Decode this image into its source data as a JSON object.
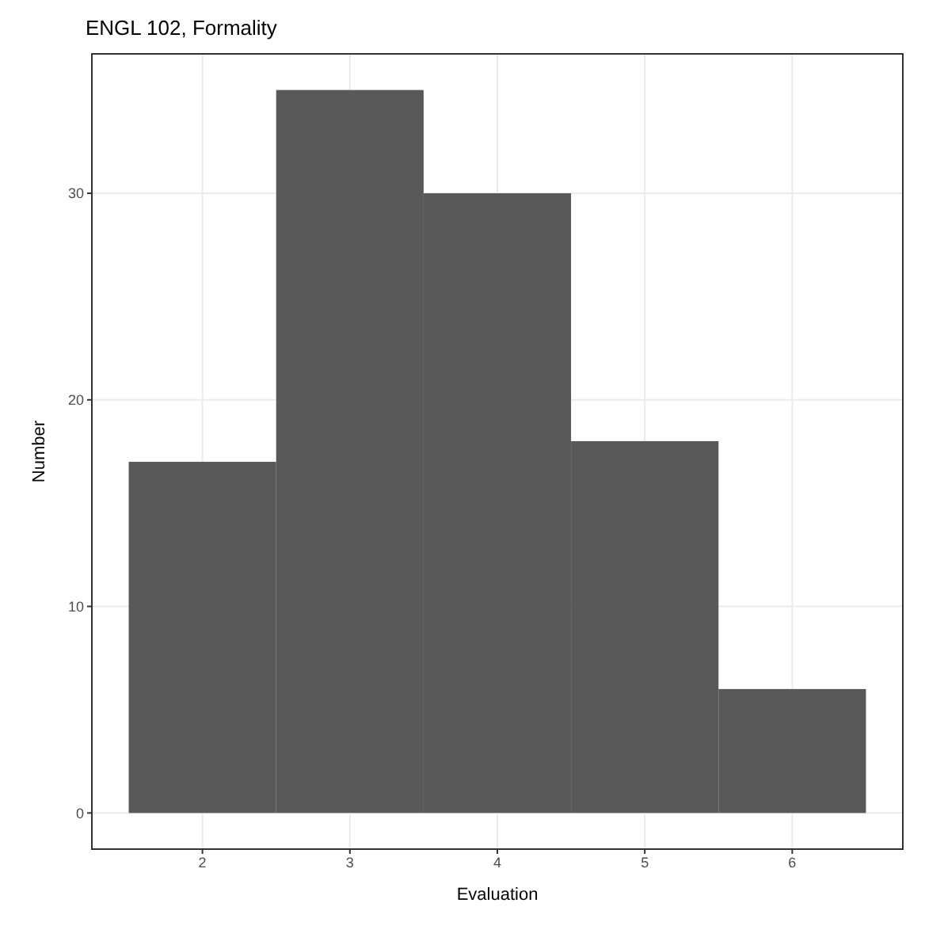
{
  "chart_data": {
    "type": "histogram",
    "title": "ENGL 102, Formality",
    "xlabel": "Evaluation",
    "ylabel": "Number",
    "bins": [
      1.5,
      2.5,
      3.5,
      4.5,
      5.5,
      6.5
    ],
    "values": [
      17,
      35,
      30,
      18,
      6
    ],
    "color": "#595959",
    "xlim": [
      1.25,
      6.75
    ],
    "xticks": [
      2,
      3,
      4,
      5,
      6
    ],
    "ylim": [
      -1.75,
      36.75
    ],
    "yticks": [
      0,
      10,
      20,
      30
    ],
    "grid": true
  }
}
